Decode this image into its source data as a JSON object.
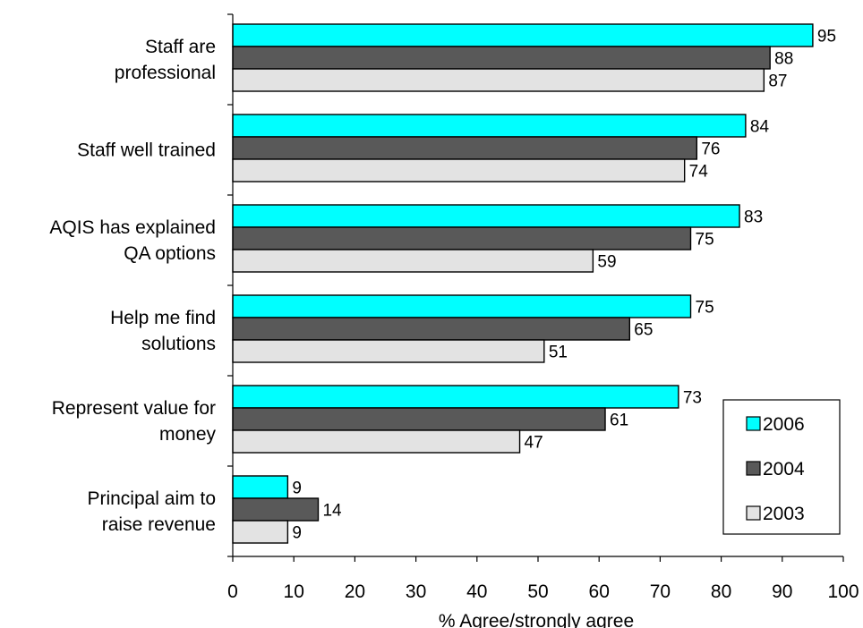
{
  "chart_data": {
    "type": "bar",
    "orientation": "horizontal",
    "categories": [
      [
        "Staff are",
        "professional"
      ],
      [
        "Staff well trained"
      ],
      [
        "AQIS has explained",
        "QA options"
      ],
      [
        "Help me find",
        "solutions"
      ],
      [
        "Represent value for",
        "money"
      ],
      [
        "Principal aim to",
        "raise revenue"
      ]
    ],
    "series": [
      {
        "name": "2006",
        "color": "#00FFFF",
        "values": [
          95,
          84,
          83,
          75,
          73,
          9
        ]
      },
      {
        "name": "2004",
        "color": "#595959",
        "values": [
          88,
          76,
          75,
          65,
          61,
          14
        ]
      },
      {
        "name": "2003",
        "color": "#E3E3E3",
        "values": [
          87,
          74,
          59,
          51,
          47,
          9
        ]
      }
    ],
    "xlabel": "% Agree/strongly agree",
    "ylabel": "",
    "xlim": [
      0,
      100
    ],
    "xticks": [
      0,
      10,
      20,
      30,
      40,
      50,
      60,
      70,
      80,
      90,
      100
    ],
    "grid": false,
    "legend": "right"
  }
}
